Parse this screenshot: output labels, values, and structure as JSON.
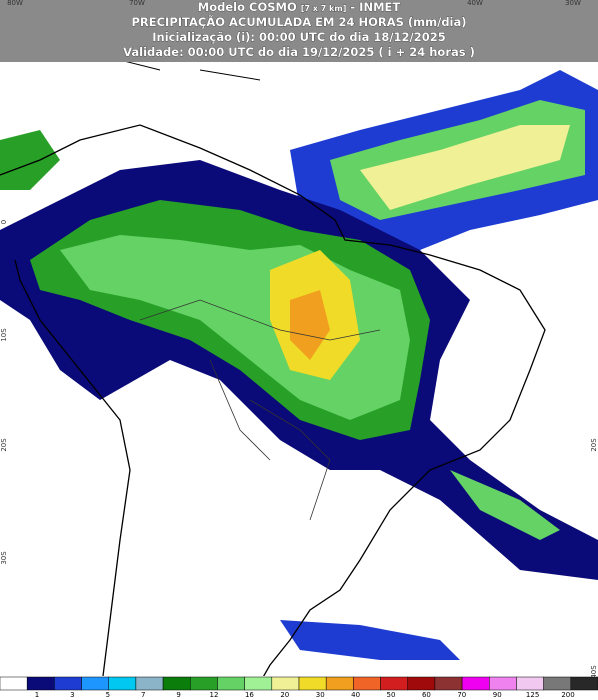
{
  "header": {
    "model": "Modelo COSMO",
    "resolution": "[7 x 7 km]",
    "institute": "- INMET",
    "title": "PRECIPITAÇÃO ACUMULADA EM 24 HORAS (mm/dia)",
    "initialization": "Inicialização (i): 00:00 UTC do dia 18/12/2025",
    "validity": "Validade: 00:00 UTC do dia 19/12/2025 ( i + 24 horas )"
  },
  "map": {
    "longitude_labels": [
      "80W",
      "70W",
      "40W",
      "30W"
    ],
    "latitude_labels_left": [
      "0",
      "10S",
      "20S",
      "30S"
    ],
    "latitude_labels_right": [
      "20S",
      "40S"
    ]
  },
  "legend": {
    "colors": [
      "#ffffff",
      "#0a0a78",
      "#1e3cd2",
      "#1e96ff",
      "#00c8f0",
      "#8cb4c8",
      "#0a7d0a",
      "#28a028",
      "#64d264",
      "#a0f096",
      "#f0f096",
      "#f0dc28",
      "#f0a01e",
      "#f06428",
      "#d21e1e",
      "#a00a0a",
      "#8c3232",
      "#f000f0",
      "#f082f0",
      "#f0c8f0",
      "#787878",
      "#282828"
    ],
    "labels": [
      1,
      3,
      5,
      7,
      9,
      12,
      16,
      20,
      30,
      40,
      50,
      60,
      70,
      90,
      125,
      200
    ]
  }
}
